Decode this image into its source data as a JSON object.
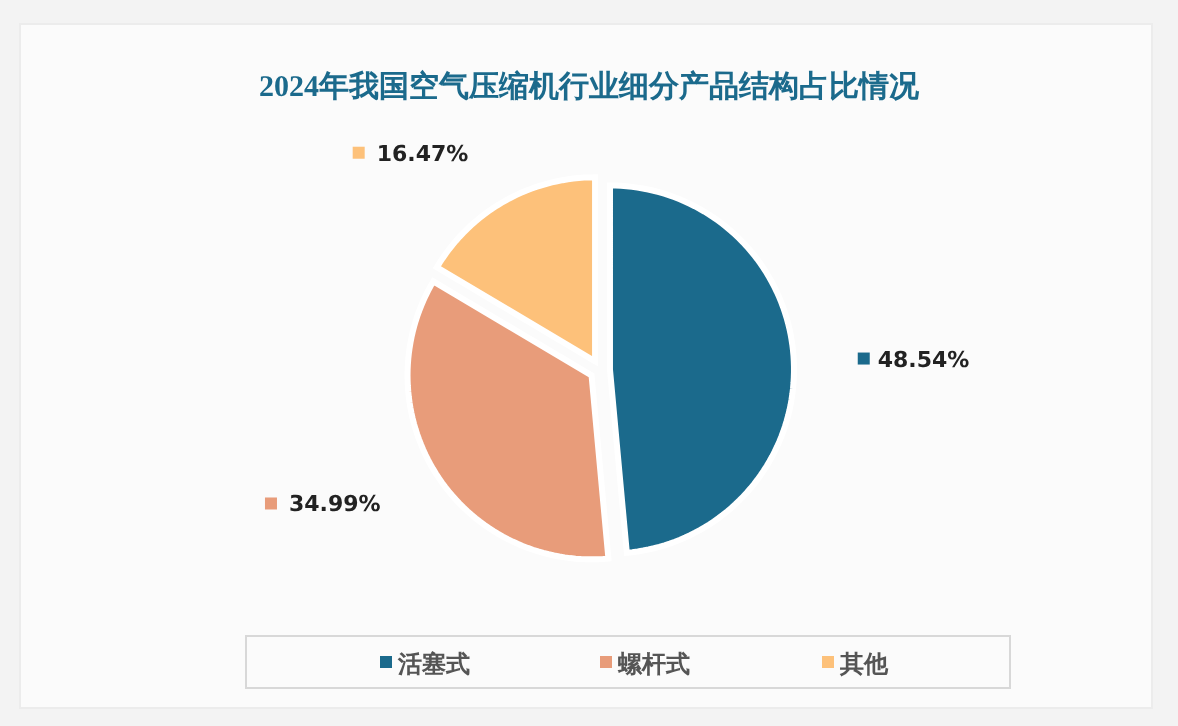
{
  "chart_data": {
    "type": "pie",
    "title": "2024年我国空气压缩机行业细分产品结构占比情况",
    "categories": [
      "活塞式",
      "螺杆式",
      "其他"
    ],
    "values": [
      48.54,
      34.99,
      16.47
    ],
    "colors": [
      "#1b6a8c",
      "#e89c7a",
      "#fdc17a"
    ],
    "value_labels": [
      "48.54%",
      "34.99%",
      "16.47%"
    ],
    "legend": "bottom"
  }
}
